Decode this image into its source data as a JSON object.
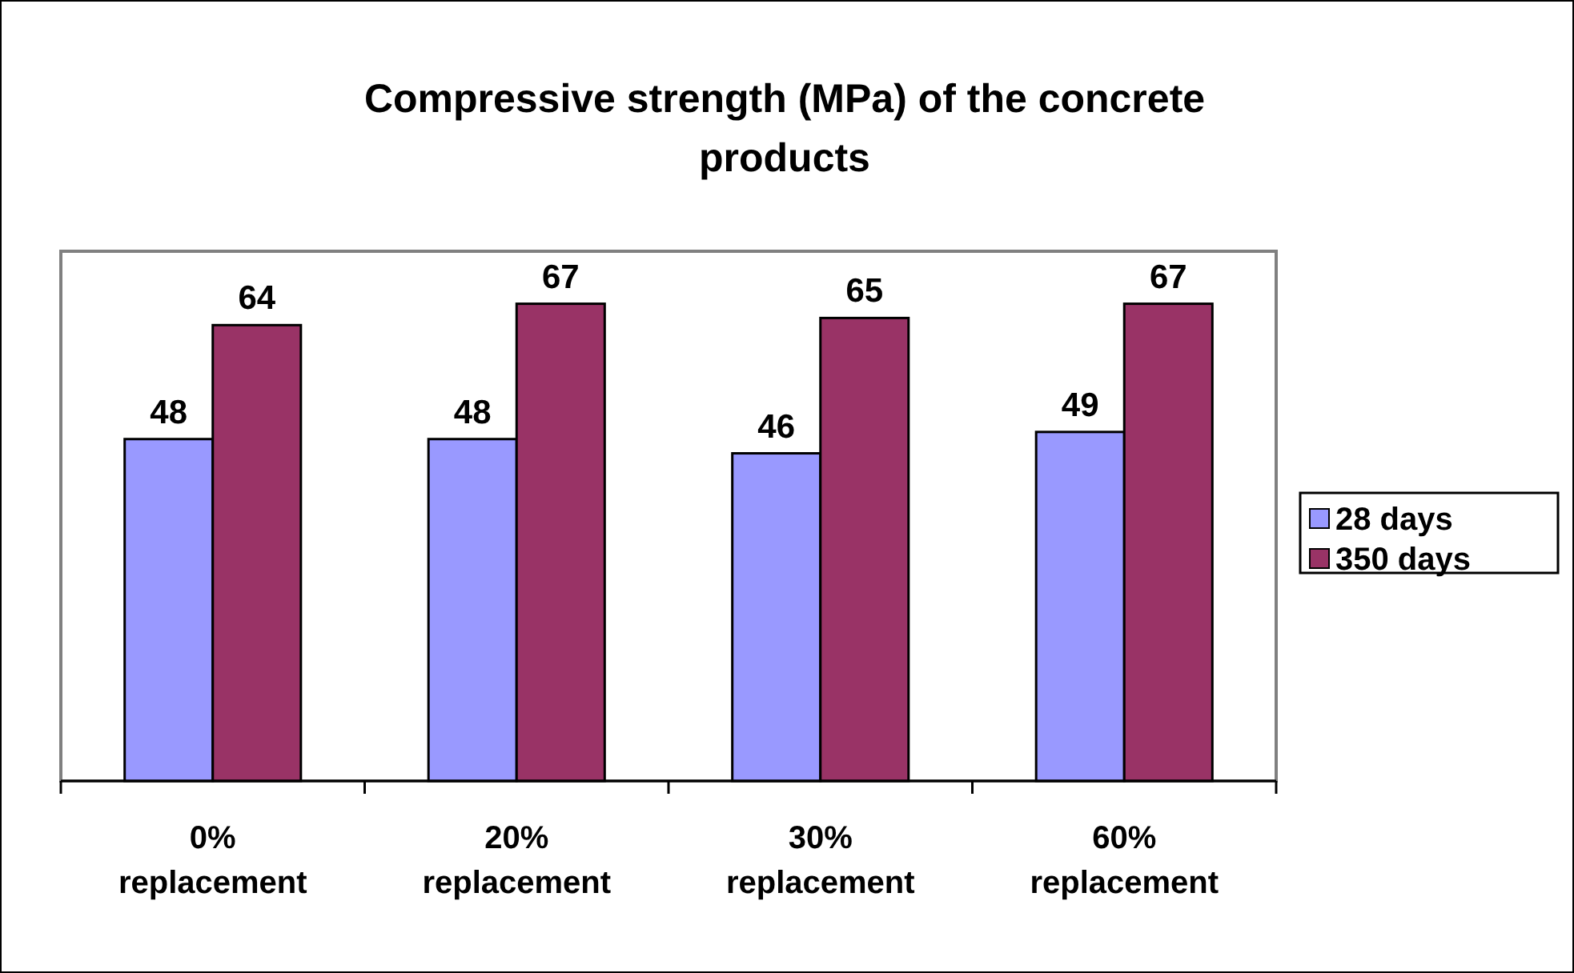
{
  "chart_data": {
    "type": "bar",
    "title": "Compressive strength (MPa) of the concrete products",
    "categories": [
      "0% replacement",
      "20% replacement",
      "30% replacement",
      "60% replacement"
    ],
    "series": [
      {
        "name": "28 days",
        "color": "#9999ff",
        "values": [
          48,
          48,
          46,
          49
        ]
      },
      {
        "name": "350 days",
        "color": "#993366",
        "values": [
          64,
          67,
          65,
          67
        ]
      }
    ],
    "data_labels": true,
    "legend": "right",
    "tick_labels": "x"
  }
}
